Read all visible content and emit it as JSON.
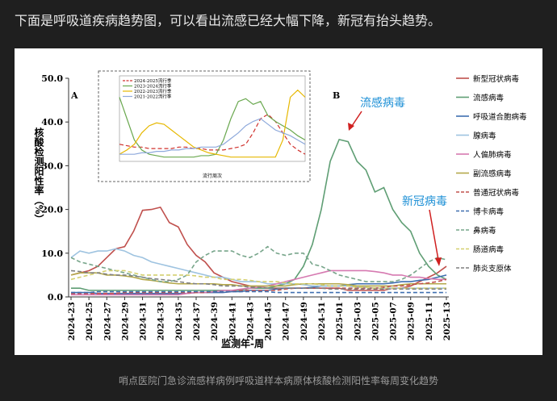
{
  "header": {
    "title": "下面是呼吸道疾病趋势图，可以看出流感已经大幅下降，新冠有抬头趋势。"
  },
  "caption": "哨点医院门急诊流感样病例呼吸道样本病原体核酸检测阳性率每周变化趋势",
  "chart_data": [
    {
      "type": "line",
      "xlabel": "监测年-周",
      "ylabel": "核酸检测阳性率（%）",
      "annotations": [
        "A",
        "B",
        "流感病毒",
        "新冠病毒"
      ],
      "categories": [
        "2024-23",
        null,
        "2024-25",
        null,
        "2024-27",
        null,
        "2024-29",
        null,
        "2024-31",
        null,
        "2024-33",
        null,
        "2024-35",
        null,
        "2024-37",
        null,
        "2024-39",
        null,
        "2024-41",
        null,
        "2024-43",
        null,
        "2024-45",
        null,
        "2024-47",
        null,
        "2024-49",
        null,
        "2024-51",
        null,
        "2025-01",
        null,
        "2025-03",
        null,
        "2025-05",
        null,
        "2025-07",
        null,
        "2025-09",
        null,
        "2025-11",
        null,
        "2025-13"
      ],
      "ylim": [
        0,
        50
      ],
      "yticks": [
        {
          "value": 0,
          "label": "0.0"
        },
        {
          "value": 10,
          "label": "10.0"
        },
        {
          "value": 20,
          "label": "20.0"
        },
        {
          "value": 30,
          "label": "30.0"
        },
        {
          "value": 40,
          "label": "40.0"
        },
        {
          "value": 50,
          "label": "50.0"
        }
      ],
      "grid": false,
      "legend": "right",
      "series": [
        {
          "name": "新型冠状病毒",
          "color": "#c0504d",
          "dash": false,
          "values": [
            5,
            5.5,
            6,
            7,
            9,
            11,
            11.5,
            15,
            19.8,
            20,
            20.5,
            17,
            16,
            12,
            9.5,
            8,
            5.5,
            4.5,
            3.5,
            3,
            2.5,
            2,
            2,
            2,
            2,
            2,
            2,
            2,
            2,
            2,
            2,
            1.5,
            1.5,
            1.5,
            1.5,
            1.5,
            2,
            2,
            2.5,
            3.5,
            4.5,
            5.5,
            7
          ]
        },
        {
          "name": "流感病毒",
          "color": "#5f9e74",
          "dash": false,
          "values": [
            2,
            2,
            1.5,
            1.5,
            1.5,
            1.5,
            1.5,
            1.5,
            1.5,
            1.5,
            1.5,
            1.5,
            1.5,
            1.5,
            1.5,
            1.5,
            1.5,
            1.5,
            1.5,
            1.5,
            2,
            2,
            2,
            2.5,
            3,
            4,
            7,
            12,
            20,
            31,
            36,
            35.5,
            31,
            29,
            24,
            25,
            20,
            17,
            15,
            10,
            7,
            5,
            4
          ]
        },
        {
          "name": "呼吸道合胞病毒",
          "color": "#3f6fb0",
          "dash": false,
          "values": [
            1,
            1,
            1,
            0.8,
            0.8,
            0.8,
            0.8,
            0.8,
            0.8,
            0.8,
            0.8,
            0.8,
            0.8,
            0.8,
            1,
            1,
            1,
            1,
            1.2,
            1.2,
            1.5,
            1.5,
            1.5,
            1.8,
            2,
            2,
            2,
            2.2,
            2.5,
            2.5,
            2.5,
            2.8,
            3,
            3,
            3,
            3,
            3.2,
            3.5,
            3.5,
            3.8,
            4,
            4.5,
            5
          ]
        },
        {
          "name": "腺病毒",
          "color": "#9ec3e0",
          "dash": false,
          "values": [
            9,
            10.5,
            10,
            10.5,
            10.5,
            11,
            10.5,
            9.5,
            9,
            8,
            7.5,
            7,
            6.5,
            6,
            5.5,
            5,
            4.5,
            4.5,
            4,
            3.5,
            3.5,
            3.5,
            3,
            3,
            3,
            3,
            2.8,
            2.5,
            2.5,
            2.5,
            2.5,
            2.5,
            2.2,
            2.2,
            2,
            2,
            2,
            2,
            2,
            2,
            2,
            2,
            2
          ]
        },
        {
          "name": "人偏肺病毒",
          "color": "#d67ab1",
          "dash": false,
          "values": [
            0.5,
            0.5,
            0.5,
            0.5,
            0.5,
            0.5,
            0.5,
            0.5,
            0.5,
            0.5,
            0.5,
            0.5,
            0.5,
            0.8,
            1,
            1,
            1.2,
            1.5,
            1.5,
            1.8,
            2,
            2.2,
            2.5,
            3,
            3.5,
            4,
            4.5,
            5,
            5.5,
            6,
            6,
            6,
            6,
            6,
            5.8,
            5.5,
            5,
            5,
            4.5,
            4.5,
            4.2,
            4,
            4
          ]
        },
        {
          "name": "副流感病毒",
          "color": "#b4a84a",
          "dash": false,
          "values": [
            5,
            5.5,
            5.5,
            5.5,
            5,
            5,
            4.8,
            4.5,
            4,
            3.8,
            3.5,
            3.2,
            3,
            3,
            3,
            3,
            3,
            2.8,
            2.8,
            2.5,
            2.5,
            2.5,
            2.5,
            2.5,
            2.5,
            2.8,
            3,
            3,
            3,
            3,
            3,
            2.8,
            2.5,
            2.5,
            2.5,
            2.5,
            2.5,
            2.8,
            3,
            3,
            3,
            3,
            3
          ]
        },
        {
          "name": "普通冠状病毒",
          "color": "#c0504d",
          "dash": true,
          "values": [
            0.8,
            0.8,
            0.8,
            0.8,
            0.8,
            0.8,
            1,
            1,
            1,
            1,
            1,
            1,
            1,
            1,
            1,
            1,
            1.2,
            1.2,
            1.2,
            1.5,
            1.5,
            1.5,
            1.5,
            1.5,
            1.8,
            2,
            2,
            2,
            2,
            2,
            2,
            2,
            2,
            2,
            2,
            2.2,
            2.5,
            2.5,
            2.8,
            3,
            3.2,
            3.5,
            4
          ]
        },
        {
          "name": "博卡病毒",
          "color": "#3f6fb0",
          "dash": true,
          "values": [
            1,
            1,
            1,
            1.2,
            1.2,
            1.2,
            1.2,
            1.2,
            1.2,
            1.2,
            1.2,
            1.2,
            1.2,
            1.2,
            1.2,
            1.2,
            1.2,
            1.2,
            1.2,
            1.2,
            1.2,
            1.2,
            1.2,
            1,
            1,
            1,
            1,
            1,
            1,
            1,
            1,
            1,
            1,
            1,
            1,
            1,
            1,
            1,
            1,
            1,
            1,
            1,
            1
          ]
        },
        {
          "name": "鼻病毒",
          "color": "#77a58a",
          "dash": true,
          "values": [
            9,
            8,
            7.5,
            7,
            6.5,
            6,
            5.5,
            5,
            4.5,
            4,
            3.5,
            3.5,
            4,
            5,
            8,
            9.5,
            10.5,
            10.5,
            10.5,
            9.5,
            9,
            10,
            11.5,
            10,
            9.5,
            10,
            10,
            7.5,
            7,
            6,
            5,
            4.5,
            4,
            3.5,
            3.5,
            3.5,
            3.5,
            4,
            5,
            6.5,
            8,
            9,
            8.5
          ]
        },
        {
          "name": "肠道病毒",
          "color": "#d4cf6e",
          "dash": true,
          "values": [
            4,
            4.5,
            5,
            5.5,
            6,
            6,
            6,
            5.5,
            5,
            5,
            5,
            5,
            5,
            5,
            4.8,
            4.5,
            4.5,
            4,
            4,
            4,
            3.8,
            3.5,
            3.5,
            3.5,
            3.2,
            3,
            3,
            3,
            2.8,
            2.5,
            2.5,
            2.5,
            2.2,
            2.2,
            2,
            2,
            2,
            2,
            2,
            2,
            2,
            2,
            2
          ]
        },
        {
          "name": "肺炎支原体",
          "color": "#7f7f7f",
          "dash": true,
          "values": [
            6,
            5.8,
            5.5,
            5.5,
            5.2,
            5,
            5,
            4.8,
            4.5,
            4.2,
            4,
            3.8,
            3.5,
            3.2,
            3,
            3,
            2.8,
            2.5,
            2.5,
            2.5,
            2.2,
            2.2,
            2,
            2,
            2,
            2,
            2,
            2,
            2,
            1.8,
            1.8,
            1.8,
            1.8,
            1.8,
            1.8,
            1.8,
            1.8,
            1.8,
            1.8,
            1.8,
            1.8,
            1.8,
            1.8
          ]
        }
      ]
    },
    {
      "type": "line",
      "xlabel": "流行周次",
      "ylim": [
        0,
        60
      ],
      "legend": "upper left",
      "series": [
        {
          "name": "2024-2025流行季",
          "color": "#d0312d",
          "dash": true,
          "values": [
            12,
            11,
            10,
            10,
            9,
            9,
            9,
            9,
            10,
            10,
            9,
            9,
            8,
            8,
            8,
            9,
            10,
            12,
            20,
            30,
            33,
            28,
            20,
            12,
            8,
            5
          ]
        },
        {
          "name": "2023-2024流行季",
          "color": "#6aa84f",
          "dash": false,
          "values": [
            45,
            30,
            15,
            8,
            5,
            4,
            3,
            3,
            3,
            3,
            3,
            4,
            4,
            5,
            15,
            30,
            42,
            44,
            40,
            42,
            32,
            28,
            25,
            22,
            18,
            15
          ]
        },
        {
          "name": "2022-2023流行季",
          "color": "#e6b800",
          "dash": false,
          "values": [
            5,
            8,
            12,
            20,
            25,
            27,
            26,
            22,
            18,
            14,
            10,
            8,
            6,
            5,
            4,
            3,
            3,
            3,
            3,
            3,
            3,
            3,
            15,
            45,
            50,
            45
          ]
        },
        {
          "name": "2021-2022流行季",
          "color": "#8ea9db",
          "dash": false,
          "values": [
            5,
            5,
            5,
            6,
            6,
            7,
            7,
            8,
            8,
            9,
            9,
            10,
            10,
            10,
            12,
            16,
            20,
            25,
            28,
            30,
            26,
            22,
            20,
            18,
            15,
            12
          ]
        }
      ]
    }
  ]
}
